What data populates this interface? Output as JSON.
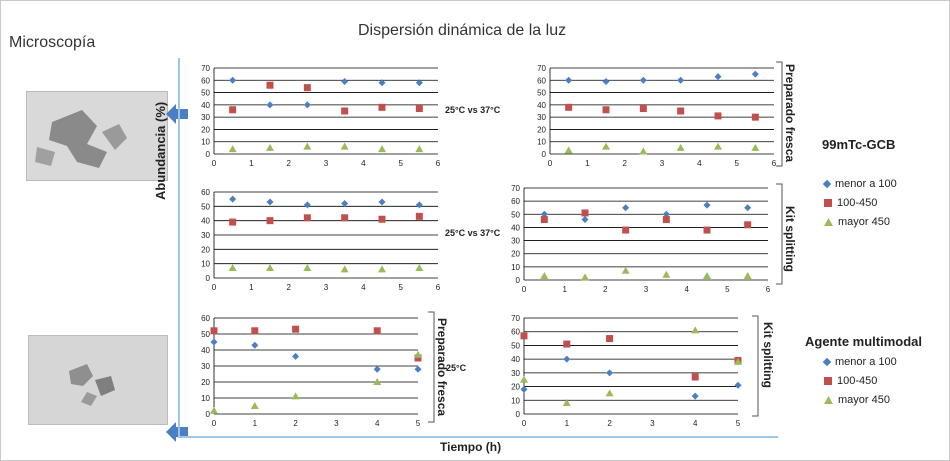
{
  "page": {
    "microscopy_title": "Microscopía",
    "dls_title": "Dispersión dinámica de la luz",
    "y_axis_label": "Abundancia (%)",
    "x_axis_label": "Tiempo (h)"
  },
  "annotations": {
    "cmp_1": "25°C vs 37°C",
    "cmp_2": "25°C vs 37°C",
    "cmp_3": "25°C",
    "side_1": "Preparado fresca",
    "side_2": "Kit splitting",
    "side_3": "Preparado fresca",
    "side_4": "Kit splitting"
  },
  "legends": {
    "top_title": "99mTc-GCB",
    "bottom_title": "Agente multimodal",
    "items": [
      "menor a 100",
      "100-450",
      "mayor 450"
    ]
  },
  "colors": {
    "series1": "#4a7fc1",
    "series2": "#c0504d",
    "series3": "#9bbb59",
    "arrow": "#4a7fc1",
    "grid": "#000000"
  },
  "chart_data": [
    {
      "type": "scatter",
      "xlim": [
        0,
        6
      ],
      "ylim": [
        0,
        70
      ],
      "xticks": [
        0,
        1,
        2,
        3,
        4,
        5,
        6
      ],
      "yticks": [
        0,
        10,
        20,
        30,
        40,
        50,
        60,
        70
      ],
      "series": [
        {
          "name": "menor a 100",
          "x": [
            0.5,
            1.5,
            2.5,
            3.5,
            4.5,
            5.5
          ],
          "y": [
            60,
            40,
            40,
            59,
            58,
            58
          ]
        },
        {
          "name": "100-450",
          "x": [
            0.5,
            1.5,
            2.5,
            3.5,
            4.5,
            5.5
          ],
          "y": [
            36,
            56,
            54,
            35,
            38,
            37
          ]
        },
        {
          "name": "mayor 450",
          "x": [
            0.5,
            1.5,
            2.5,
            3.5,
            4.5,
            5.5
          ],
          "y": [
            4,
            5,
            6,
            6,
            4,
            4
          ]
        }
      ]
    },
    {
      "type": "scatter",
      "xlim": [
        0,
        6
      ],
      "ylim": [
        0,
        70
      ],
      "xticks": [
        0,
        1,
        2,
        3,
        4,
        5,
        6
      ],
      "yticks": [
        0,
        10,
        20,
        30,
        40,
        50,
        60,
        70
      ],
      "series": [
        {
          "name": "menor a 100",
          "x": [
            0.5,
            1.5,
            2.5,
            3.5,
            4.5,
            5.5
          ],
          "y": [
            60,
            59,
            60,
            60,
            63,
            65
          ]
        },
        {
          "name": "100-450",
          "x": [
            0.5,
            1.5,
            2.5,
            3.5,
            4.5,
            5.5
          ],
          "y": [
            38,
            36,
            37,
            35,
            31,
            30
          ]
        },
        {
          "name": "mayor 450",
          "x": [
            0.5,
            1.5,
            2.5,
            3.5,
            4.5,
            5.5
          ],
          "y": [
            3,
            6,
            2,
            5,
            6,
            5
          ]
        }
      ]
    },
    {
      "type": "scatter",
      "xlim": [
        0,
        6
      ],
      "ylim": [
        0,
        60
      ],
      "xticks": [
        0,
        1,
        2,
        3,
        4,
        5,
        6
      ],
      "yticks": [
        0,
        10,
        20,
        30,
        40,
        50,
        60
      ],
      "series": [
        {
          "name": "menor a 100",
          "x": [
            0.5,
            1.5,
            2.5,
            3.5,
            4.5,
            5.5
          ],
          "y": [
            55,
            53,
            51,
            52,
            53,
            51
          ]
        },
        {
          "name": "100-450",
          "x": [
            0.5,
            1.5,
            2.5,
            3.5,
            4.5,
            5.5
          ],
          "y": [
            39,
            40,
            42,
            42,
            41,
            43
          ]
        },
        {
          "name": "mayor 450",
          "x": [
            0.5,
            1.5,
            2.5,
            3.5,
            4.5,
            5.5
          ],
          "y": [
            7,
            7,
            7,
            6,
            6,
            7
          ]
        }
      ]
    },
    {
      "type": "scatter",
      "xlim": [
        0,
        6
      ],
      "ylim": [
        0,
        70
      ],
      "xticks": [
        0,
        1,
        2,
        3,
        4,
        5,
        6
      ],
      "yticks": [
        0,
        10,
        20,
        30,
        40,
        50,
        60,
        70
      ],
      "series": [
        {
          "name": "menor a 100",
          "x": [
            0.5,
            1.5,
            2.5,
            3.5,
            4.5,
            5.5
          ],
          "y": [
            50,
            46,
            55,
            50,
            57,
            55
          ]
        },
        {
          "name": "100-450",
          "x": [
            0.5,
            1.5,
            2.5,
            3.5,
            4.5,
            5.5
          ],
          "y": [
            46,
            51,
            38,
            46,
            38,
            42
          ]
        },
        {
          "name": "mayor 450",
          "x": [
            0.5,
            1.5,
            2.5,
            3.5,
            4.5,
            5.5
          ],
          "y": [
            3,
            2,
            7,
            4,
            3,
            3
          ]
        }
      ]
    },
    {
      "type": "scatter",
      "xlim": [
        0,
        5
      ],
      "ylim": [
        0,
        60
      ],
      "xticks": [
        0,
        1,
        2,
        3,
        4,
        5
      ],
      "yticks": [
        0,
        10,
        20,
        30,
        40,
        50,
        60
      ],
      "series": [
        {
          "name": "menor a 100",
          "x": [
            0,
            1,
            2,
            4,
            5
          ],
          "y": [
            45,
            43,
            36,
            28,
            28
          ]
        },
        {
          "name": "100-450",
          "x": [
            0,
            1,
            2,
            4,
            5
          ],
          "y": [
            52,
            52,
            53,
            52,
            35
          ]
        },
        {
          "name": "mayor 450",
          "x": [
            0,
            1,
            2,
            4,
            5
          ],
          "y": [
            2,
            5,
            11,
            20,
            37
          ]
        }
      ]
    },
    {
      "type": "scatter",
      "xlim": [
        0,
        5
      ],
      "ylim": [
        0,
        70
      ],
      "xticks": [
        0,
        1,
        2,
        3,
        4,
        5
      ],
      "yticks": [
        0,
        10,
        20,
        30,
        40,
        50,
        60,
        70
      ],
      "series": [
        {
          "name": "menor a 100",
          "x": [
            0,
            1,
            2,
            4,
            5
          ],
          "y": [
            18,
            40,
            30,
            13,
            21
          ]
        },
        {
          "name": "100-450",
          "x": [
            0,
            1,
            2,
            4,
            5
          ],
          "y": [
            57,
            51,
            55,
            27,
            39
          ]
        },
        {
          "name": "mayor 450",
          "x": [
            0,
            1,
            2,
            4,
            5
          ],
          "y": [
            25,
            8,
            15,
            61,
            38
          ]
        }
      ]
    }
  ]
}
